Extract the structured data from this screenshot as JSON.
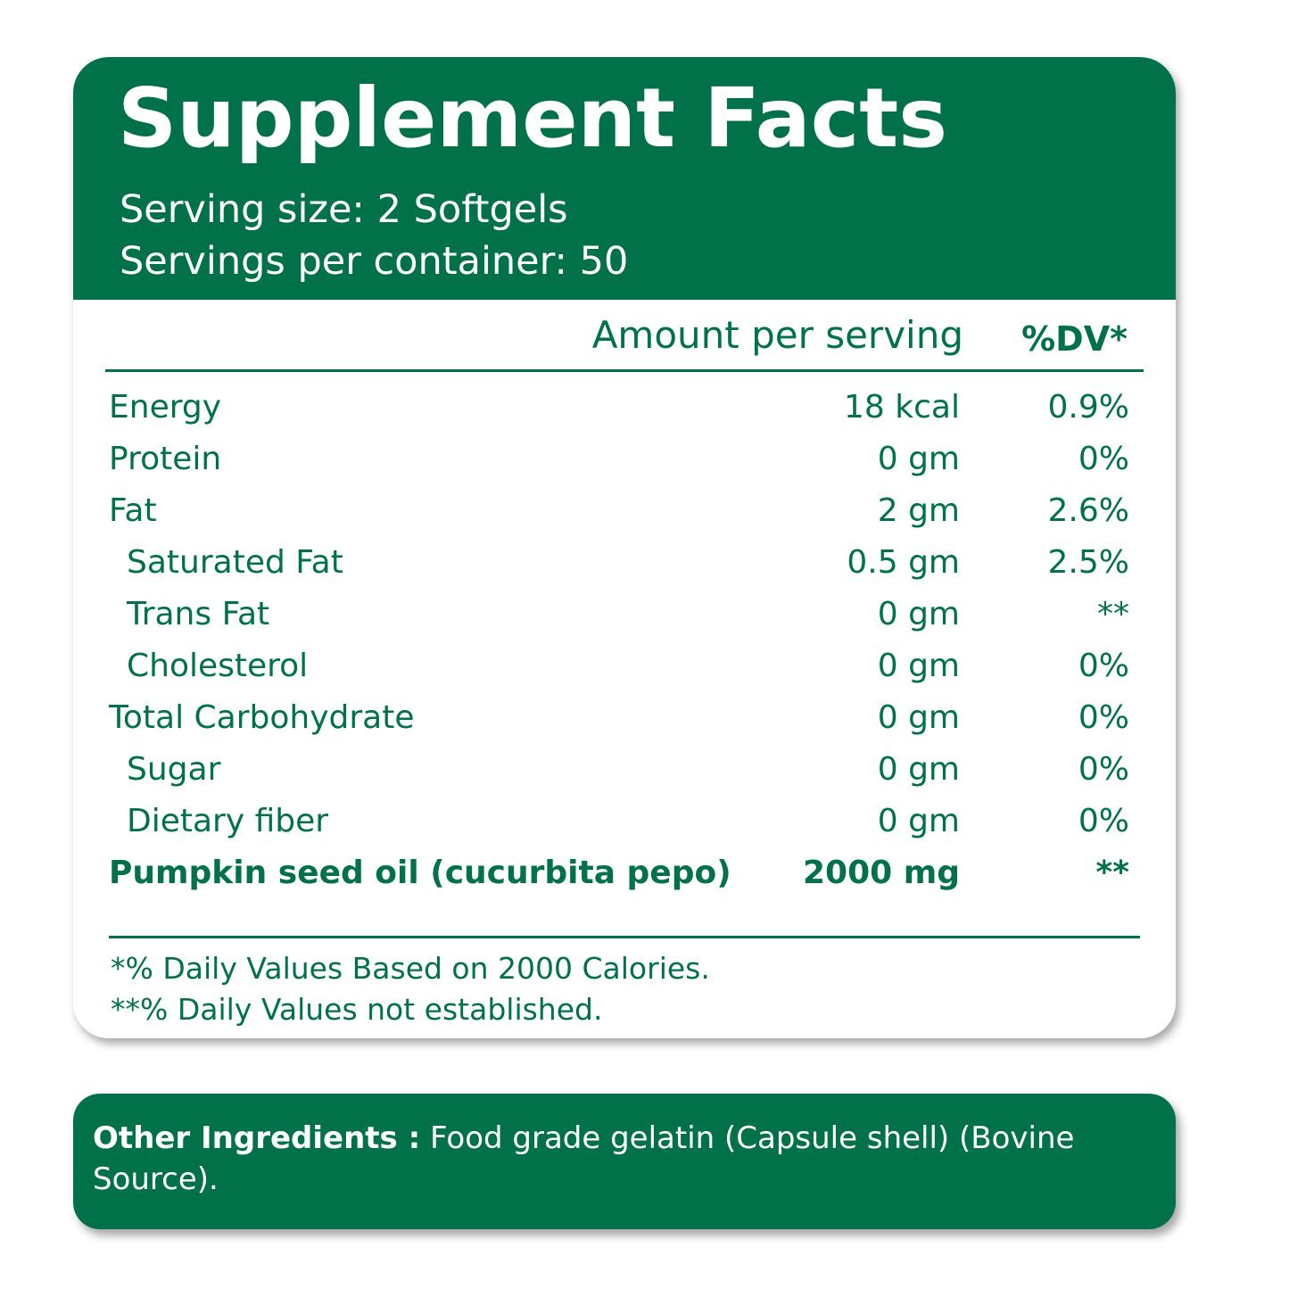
{
  "facts": {
    "title": "Supplement Facts",
    "serving_size": "Serving size: 2 Softgels",
    "servings_per_container": "Servings per container: 50",
    "col_amount": "Amount per serving",
    "col_dv": "%DV*",
    "rows": [
      {
        "name": "Energy",
        "amount": "18 kcal",
        "dv": "0.9%"
      },
      {
        "name": "Protein",
        "amount": "0 gm",
        "dv": "0%"
      },
      {
        "name": "Fat",
        "amount": "2 gm",
        "dv": "2.6%"
      },
      {
        "name": "Saturated Fat",
        "amount": "0.5 gm",
        "dv": "2.5%"
      },
      {
        "name": "Trans Fat",
        "amount": "0 gm",
        "dv": "**"
      },
      {
        "name": "Cholesterol",
        "amount": "0 gm",
        "dv": "0%"
      },
      {
        "name": "Total Carbohydrate",
        "amount": "0 gm",
        "dv": "0%"
      },
      {
        "name": "Sugar",
        "amount": "0 gm",
        "dv": "0%"
      },
      {
        "name": "Dietary fiber",
        "amount": "0 gm",
        "dv": "0%"
      },
      {
        "name": "Pumpkin seed oil (cucurbita pepo)",
        "amount": "2000 mg",
        "dv": "**"
      }
    ],
    "footnote_1": "*% Daily Values Based on 2000 Calories.",
    "footnote_2": "**% Daily Values not established."
  },
  "ingredients": {
    "label": "Other Ingredients :",
    "text": " Food grade gelatin (Capsule shell) (Bovine Source)."
  },
  "colors": {
    "brand_green": "#01714a",
    "background": "#ffffff"
  }
}
